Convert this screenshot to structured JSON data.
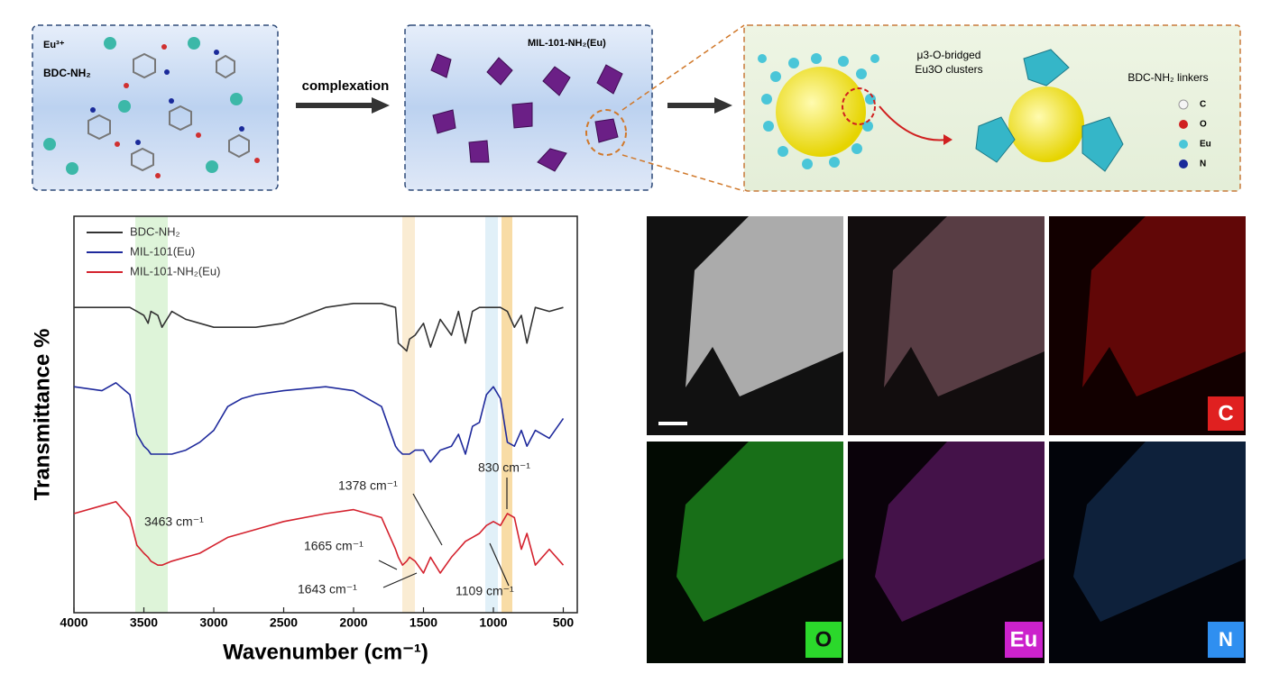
{
  "scheme": {
    "panel1": {
      "ion": "Eu³⁺",
      "linker": "BDC-NH₂"
    },
    "arrow1": "complexation",
    "panel2": {
      "label": "MIL-101-NH₂(Eu)"
    },
    "panel3": {
      "cluster_label": [
        "μ3-O-bridged",
        "Eu3O clusters"
      ],
      "linker_label": "BDC-NH₂ linkers",
      "legend": [
        "C",
        "O",
        "Eu",
        "N"
      ]
    }
  },
  "eds_maps": {
    "labels": [
      "C",
      "O",
      "Eu",
      "N"
    ]
  },
  "chart_data": {
    "type": "line",
    "xlabel": "Wavenumber (cm⁻¹)",
    "ylabel": "Transmittance %",
    "x": [
      4000,
      3800,
      3700,
      3600,
      3550,
      3500,
      3470,
      3450,
      3400,
      3370,
      3300,
      3200,
      3100,
      3000,
      2900,
      2800,
      2700,
      2500,
      2200,
      2000,
      1800,
      1700,
      1680,
      1650,
      1620,
      1600,
      1560,
      1500,
      1450,
      1380,
      1300,
      1250,
      1200,
      1150,
      1100,
      1050,
      1000,
      950,
      900,
      850,
      800,
      760,
      700,
      600,
      500
    ],
    "series": [
      {
        "name": "BDC-NH₂",
        "color": "#333333",
        "values": [
          77,
          77,
          77,
          77,
          76,
          75,
          73,
          76,
          75,
          72,
          76,
          74,
          73,
          72,
          72,
          72,
          72,
          73,
          77,
          78,
          78,
          77,
          68,
          67,
          66,
          69,
          70,
          73,
          67,
          74,
          70,
          76,
          68,
          76,
          77,
          77,
          77,
          77,
          76,
          72,
          75,
          68,
          77,
          76,
          77
        ]
      },
      {
        "name": "MIL-101(Eu)",
        "color": "#1f2a9c",
        "values": [
          57,
          56,
          58,
          55,
          45,
          42,
          41,
          40,
          40,
          40,
          40,
          41,
          43,
          46,
          52,
          54,
          55,
          56,
          57,
          56,
          52,
          42,
          41,
          40,
          40,
          40,
          41,
          41,
          38,
          41,
          42,
          45,
          40,
          47,
          48,
          55,
          57,
          54,
          43,
          42,
          46,
          42,
          46,
          44,
          49
        ]
      },
      {
        "name": "MIL-101-NH₂(Eu)",
        "color": "#d4222e",
        "values": [
          25,
          27,
          28,
          24,
          17,
          15,
          14,
          13,
          12,
          12,
          13,
          14,
          15,
          17,
          19,
          20,
          21,
          23,
          25,
          26,
          24,
          16,
          14,
          12,
          13,
          14,
          13,
          10,
          14,
          10,
          14,
          16,
          18,
          19,
          20,
          22,
          23,
          22,
          25,
          24,
          16,
          20,
          12,
          16,
          12
        ]
      }
    ],
    "xlim": [
      4000,
      400
    ],
    "ylim": [
      0,
      100
    ],
    "xticks": [
      4000,
      3500,
      3000,
      2500,
      2000,
      1500,
      1000,
      500
    ],
    "annotations": [
      "3463 cm⁻¹",
      "1665 cm⁻¹",
      "1643 cm⁻¹",
      "1378 cm⁻¹",
      "1109 cm⁻¹",
      "830 cm⁻¹"
    ],
    "legend": "upper left"
  }
}
